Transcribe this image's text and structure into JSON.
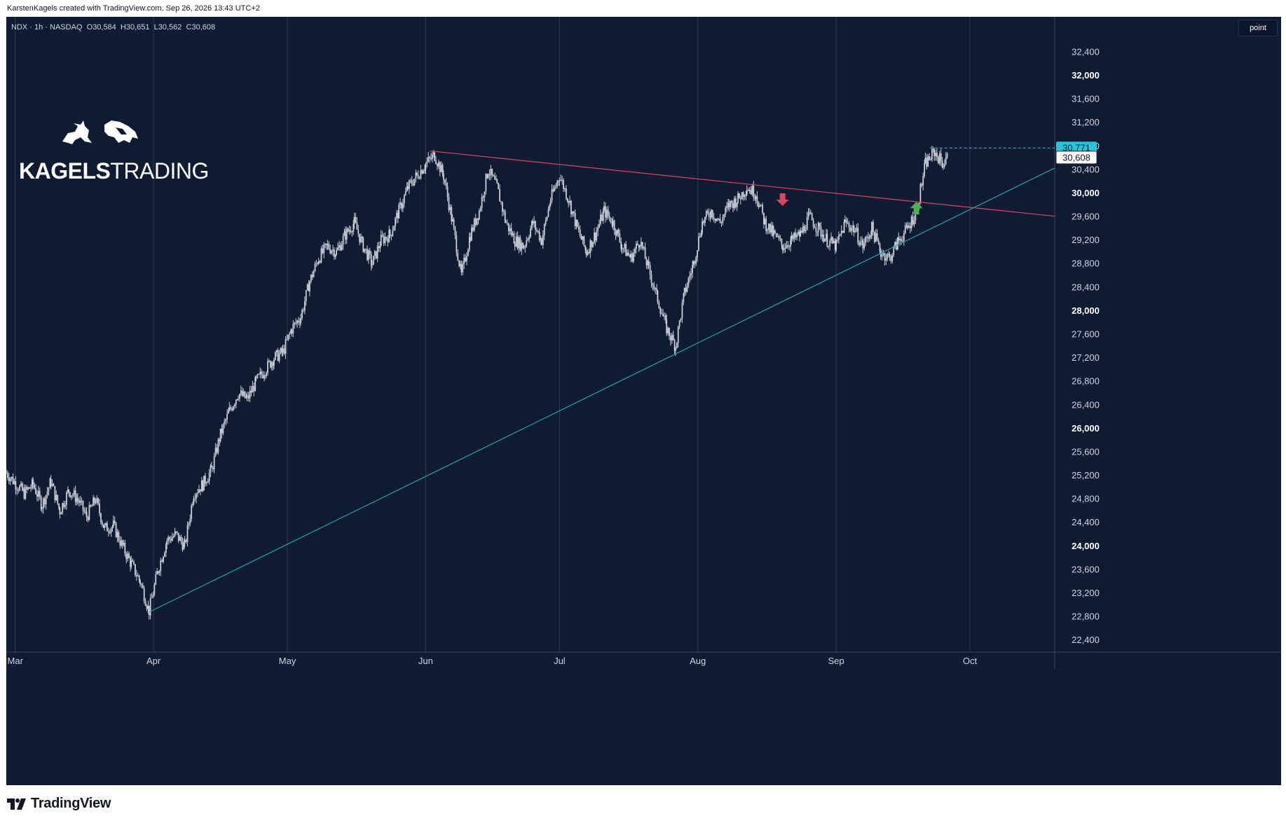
{
  "credit": "KarstenKagels created with TradingView.com, Sep 26, 2026 13:43 UTC+2",
  "header": {
    "symbol": "NDX · 1h · NASDAQ",
    "open": "O30,584",
    "high": "H30,651",
    "low": "L30,562",
    "close": "C30,608"
  },
  "unit_button": "point",
  "logo": {
    "word1": "KAGELS",
    "word2": "TRADING"
  },
  "footer": {
    "brand": "TradingView",
    "icon": "tradingview-logo-icon"
  },
  "colors": {
    "background": "#0f1b33",
    "candles": "#c9cdd6",
    "resistance_line": "#e0435a",
    "support_line": "#1fa4a6",
    "down_arrow": "#e0435a",
    "up_arrow": "#4caf50",
    "high_tag": "#26c6da",
    "last_tag": "#ffffff"
  },
  "chart_data": {
    "type": "candlestick",
    "symbol": "NDX",
    "interval": "1h",
    "x_type": "date",
    "ylim": [
      22200,
      33000
    ],
    "y_ticks": [
      22400,
      22800,
      23200,
      23600,
      24000,
      24400,
      24800,
      25200,
      25600,
      26000,
      26400,
      26800,
      27200,
      27600,
      28000,
      28400,
      28800,
      29200,
      29600,
      30000,
      30400,
      30800,
      31200,
      31600,
      32000,
      32400
    ],
    "y_tick_labels": [
      "22,400",
      "22,800",
      "23,200",
      "23,600",
      "24,000",
      "24,400",
      "24,800",
      "25,200",
      "25,600",
      "26,000",
      "26,400",
      "26,800",
      "27,200",
      "27,600",
      "28,000",
      "28,400",
      "28,800",
      "29,200",
      "29,600",
      "30,000",
      "30,400",
      "30,800",
      "31,200",
      "31,600",
      "32,000",
      "32,400"
    ],
    "y_major_ticks": [
      24000,
      26000,
      28000,
      30000,
      32000
    ],
    "xlim": [
      "2026-02-27",
      "2026-10-20"
    ],
    "x_ticks": [
      {
        "date": "2026-03-01",
        "label": "Mar"
      },
      {
        "date": "2026-04-01",
        "label": "Apr"
      },
      {
        "date": "2026-05-01",
        "label": "May"
      },
      {
        "date": "2026-06-01",
        "label": "Jun"
      },
      {
        "date": "2026-07-01",
        "label": "Jul"
      },
      {
        "date": "2026-08-01",
        "label": "Aug"
      },
      {
        "date": "2026-09-01",
        "label": "Sep"
      },
      {
        "date": "2026-10-01",
        "label": "Oct"
      }
    ],
    "grid": "vertical",
    "price_path": [
      [
        "2026-02-27",
        25250
      ],
      [
        "2026-03-03",
        24900
      ],
      [
        "2026-03-05",
        25050
      ],
      [
        "2026-03-07",
        24700
      ],
      [
        "2026-03-09",
        25100
      ],
      [
        "2026-03-11",
        24600
      ],
      [
        "2026-03-13",
        24950
      ],
      [
        "2026-03-15",
        24800
      ],
      [
        "2026-03-17",
        24500
      ],
      [
        "2026-03-19",
        24800
      ],
      [
        "2026-03-21",
        24300
      ],
      [
        "2026-03-23",
        24350
      ],
      [
        "2026-03-25",
        24000
      ],
      [
        "2026-03-27",
        23700
      ],
      [
        "2026-03-29",
        23400
      ],
      [
        "2026-03-31",
        22900
      ],
      [
        "2026-04-02",
        23600
      ],
      [
        "2026-04-04",
        24100
      ],
      [
        "2026-04-06",
        24200
      ],
      [
        "2026-04-08",
        24000
      ],
      [
        "2026-04-10",
        24900
      ],
      [
        "2026-04-12",
        25050
      ],
      [
        "2026-04-14",
        25300
      ],
      [
        "2026-04-16",
        25900
      ],
      [
        "2026-04-18",
        26300
      ],
      [
        "2026-04-20",
        26600
      ],
      [
        "2026-04-22",
        26500
      ],
      [
        "2026-04-24",
        26800
      ],
      [
        "2026-04-26",
        27000
      ],
      [
        "2026-04-28",
        27200
      ],
      [
        "2026-04-30",
        27300
      ],
      [
        "2026-05-02",
        27700
      ],
      [
        "2026-05-04",
        27900
      ],
      [
        "2026-05-06",
        28500
      ],
      [
        "2026-05-08",
        28900
      ],
      [
        "2026-05-10",
        29100
      ],
      [
        "2026-05-12",
        29000
      ],
      [
        "2026-05-14",
        29300
      ],
      [
        "2026-05-16",
        29500
      ],
      [
        "2026-05-18",
        29100
      ],
      [
        "2026-05-20",
        28800
      ],
      [
        "2026-05-22",
        29200
      ],
      [
        "2026-05-24",
        29300
      ],
      [
        "2026-05-26",
        29700
      ],
      [
        "2026-05-28",
        30100
      ],
      [
        "2026-05-30",
        30300
      ],
      [
        "2026-06-01",
        30500
      ],
      [
        "2026-06-03",
        30650
      ],
      [
        "2026-06-05",
        30300
      ],
      [
        "2026-06-07",
        29500
      ],
      [
        "2026-06-09",
        28600
      ],
      [
        "2026-06-11",
        29300
      ],
      [
        "2026-06-13",
        29700
      ],
      [
        "2026-06-15",
        30400
      ],
      [
        "2026-06-17",
        30100
      ],
      [
        "2026-06-19",
        29500
      ],
      [
        "2026-06-21",
        29200
      ],
      [
        "2026-06-23",
        29100
      ],
      [
        "2026-06-25",
        29500
      ],
      [
        "2026-06-27",
        29200
      ],
      [
        "2026-06-29",
        29900
      ],
      [
        "2026-07-01",
        30300
      ],
      [
        "2026-07-03",
        29900
      ],
      [
        "2026-07-05",
        29400
      ],
      [
        "2026-07-07",
        29000
      ],
      [
        "2026-07-09",
        29300
      ],
      [
        "2026-07-11",
        29700
      ],
      [
        "2026-07-13",
        29500
      ],
      [
        "2026-07-15",
        29100
      ],
      [
        "2026-07-17",
        28900
      ],
      [
        "2026-07-19",
        29200
      ],
      [
        "2026-07-21",
        28700
      ],
      [
        "2026-07-23",
        28200
      ],
      [
        "2026-07-25",
        27700
      ],
      [
        "2026-07-27",
        27400
      ],
      [
        "2026-07-29",
        28300
      ],
      [
        "2026-07-31",
        28800
      ],
      [
        "2026-08-02",
        29500
      ],
      [
        "2026-08-04",
        29700
      ],
      [
        "2026-08-06",
        29500
      ],
      [
        "2026-08-08",
        29800
      ],
      [
        "2026-08-10",
        29900
      ],
      [
        "2026-08-12",
        30100
      ],
      [
        "2026-08-14",
        30000
      ],
      [
        "2026-08-16",
        29500
      ],
      [
        "2026-08-18",
        29300
      ],
      [
        "2026-08-20",
        29100
      ],
      [
        "2026-08-22",
        29200
      ],
      [
        "2026-08-24",
        29300
      ],
      [
        "2026-08-26",
        29600
      ],
      [
        "2026-08-28",
        29400
      ],
      [
        "2026-08-30",
        29200
      ],
      [
        "2026-09-01",
        29100
      ],
      [
        "2026-09-03",
        29500
      ],
      [
        "2026-09-05",
        29400
      ],
      [
        "2026-09-07",
        29100
      ],
      [
        "2026-09-09",
        29400
      ],
      [
        "2026-09-11",
        29000
      ],
      [
        "2026-09-13",
        28900
      ],
      [
        "2026-09-15",
        29200
      ],
      [
        "2026-09-17",
        29400
      ],
      [
        "2026-09-19",
        29700
      ],
      [
        "2026-09-21",
        30500
      ],
      [
        "2026-09-23",
        30700
      ],
      [
        "2026-09-25",
        30500
      ],
      [
        "2026-09-26",
        30608
      ]
    ],
    "annotations": [
      {
        "type": "trendline",
        "name": "resistance",
        "from": [
          "2026-06-02",
          30720
        ],
        "to": [
          "2026-10-20",
          29610
        ]
      },
      {
        "type": "trendline",
        "name": "support",
        "from": [
          "2026-03-31",
          22880
        ],
        "to": [
          "2026-10-20",
          30430
        ]
      },
      {
        "type": "arrow",
        "direction": "down",
        "at": [
          "2026-08-20",
          29880
        ]
      },
      {
        "type": "arrow",
        "direction": "up",
        "at": [
          "2026-09-19",
          29760
        ]
      },
      {
        "type": "horizontal_ray",
        "value": 30771,
        "from": "2026-09-22"
      }
    ],
    "price_tags": [
      {
        "value": 30771,
        "label": "30,771",
        "kind": "high"
      },
      {
        "value": 30608,
        "label": "30,608",
        "kind": "last"
      }
    ]
  }
}
